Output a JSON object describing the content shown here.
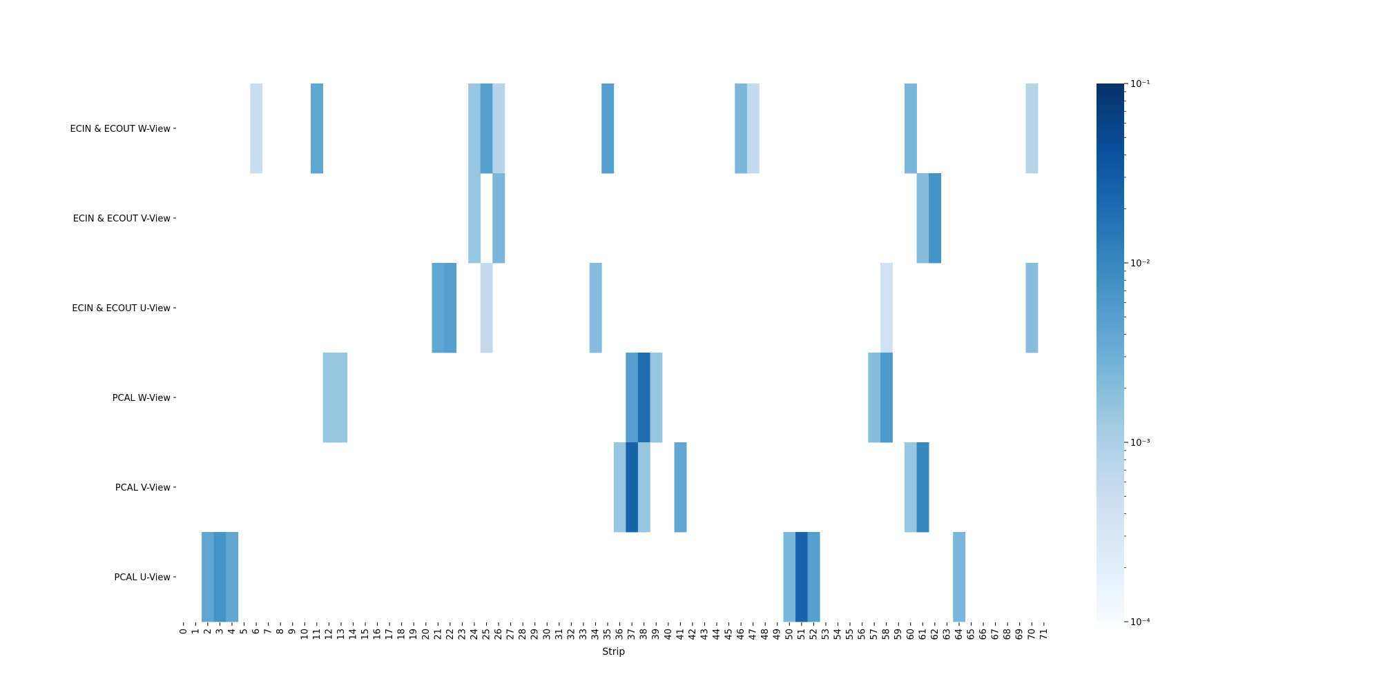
{
  "chart_data": {
    "type": "heatmap",
    "xlabel": "Strip",
    "ylabel": "",
    "x_ticks": [
      "0",
      "1",
      "2",
      "3",
      "4",
      "5",
      "6",
      "7",
      "8",
      "9",
      "10",
      "11",
      "12",
      "13",
      "14",
      "15",
      "16",
      "17",
      "18",
      "19",
      "20",
      "21",
      "22",
      "23",
      "24",
      "25",
      "26",
      "27",
      "28",
      "29",
      "30",
      "31",
      "32",
      "33",
      "34",
      "35",
      "36",
      "37",
      "38",
      "39",
      "40",
      "41",
      "42",
      "43",
      "44",
      "45",
      "46",
      "47",
      "48",
      "49",
      "50",
      "51",
      "52",
      "53",
      "54",
      "55",
      "56",
      "57",
      "58",
      "59",
      "60",
      "61",
      "62",
      "63",
      "64",
      "65",
      "66",
      "67",
      "68",
      "69",
      "70",
      "71"
    ],
    "rows": [
      "ECIN & ECOUT W-View",
      "ECIN & ECOUT V-View",
      "ECIN & ECOUT U-View",
      "PCAL W-View",
      "PCAL V-View",
      "PCAL U-View"
    ],
    "color_scale": "log",
    "colormap": "Blues",
    "vmin": 0.0001,
    "vmax": 0.1,
    "colorbar_ticks": [
      "10⁻¹",
      "10⁻²",
      "10⁻³",
      "10⁻⁴"
    ],
    "cells": [
      {
        "row": 0,
        "x": 6,
        "value": 0.0005
      },
      {
        "row": 0,
        "x": 11,
        "value": 0.004
      },
      {
        "row": 0,
        "x": 24,
        "value": 0.0015
      },
      {
        "row": 0,
        "x": 25,
        "value": 0.005
      },
      {
        "row": 0,
        "x": 26,
        "value": 0.0008
      },
      {
        "row": 0,
        "x": 35,
        "value": 0.005
      },
      {
        "row": 0,
        "x": 46,
        "value": 0.0025
      },
      {
        "row": 0,
        "x": 47,
        "value": 0.0006
      },
      {
        "row": 0,
        "x": 60,
        "value": 0.0025
      },
      {
        "row": 0,
        "x": 70,
        "value": 0.0008
      },
      {
        "row": 1,
        "x": 24,
        "value": 0.0015
      },
      {
        "row": 1,
        "x": 26,
        "value": 0.0025
      },
      {
        "row": 1,
        "x": 61,
        "value": 0.002
      },
      {
        "row": 1,
        "x": 62,
        "value": 0.007
      },
      {
        "row": 2,
        "x": 21,
        "value": 0.004
      },
      {
        "row": 2,
        "x": 22,
        "value": 0.005
      },
      {
        "row": 2,
        "x": 25,
        "value": 0.0006
      },
      {
        "row": 2,
        "x": 34,
        "value": 0.002
      },
      {
        "row": 2,
        "x": 58,
        "value": 0.0004
      },
      {
        "row": 2,
        "x": 70,
        "value": 0.002
      },
      {
        "row": 3,
        "x": 12,
        "value": 0.0015
      },
      {
        "row": 3,
        "x": 13,
        "value": 0.0015
      },
      {
        "row": 3,
        "x": 37,
        "value": 0.005
      },
      {
        "row": 3,
        "x": 38,
        "value": 0.02
      },
      {
        "row": 3,
        "x": 39,
        "value": 0.0015
      },
      {
        "row": 3,
        "x": 57,
        "value": 0.002
      },
      {
        "row": 3,
        "x": 58,
        "value": 0.006
      },
      {
        "row": 4,
        "x": 36,
        "value": 0.0015
      },
      {
        "row": 4,
        "x": 37,
        "value": 0.025
      },
      {
        "row": 4,
        "x": 38,
        "value": 0.0015
      },
      {
        "row": 4,
        "x": 41,
        "value": 0.004
      },
      {
        "row": 4,
        "x": 60,
        "value": 0.0015
      },
      {
        "row": 4,
        "x": 61,
        "value": 0.01
      },
      {
        "row": 5,
        "x": 2,
        "value": 0.004
      },
      {
        "row": 5,
        "x": 3,
        "value": 0.007
      },
      {
        "row": 5,
        "x": 4,
        "value": 0.004
      },
      {
        "row": 5,
        "x": 50,
        "value": 0.0025
      },
      {
        "row": 5,
        "x": 51,
        "value": 0.025
      },
      {
        "row": 5,
        "x": 52,
        "value": 0.005
      },
      {
        "row": 5,
        "x": 64,
        "value": 0.0025
      }
    ]
  }
}
